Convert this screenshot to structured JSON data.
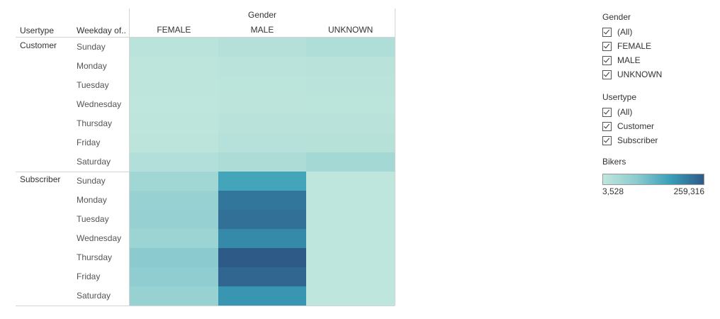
{
  "chart_data": {
    "type": "heatmap",
    "column_header": "Gender",
    "row_headers": [
      "Usertype",
      "Weekday of.."
    ],
    "columns": [
      "FEMALE",
      "MALE",
      "UNKNOWN"
    ],
    "groups": [
      {
        "name": "Customer",
        "rows": [
          {
            "day": "Sunday",
            "values": [
              12000,
              22000,
              30000
            ]
          },
          {
            "day": "Monday",
            "values": [
              6000,
              12000,
              14000
            ]
          },
          {
            "day": "Tuesday",
            "values": [
              5500,
              11000,
              13000
            ]
          },
          {
            "day": "Wednesday",
            "values": [
              4000,
              9000,
              11000
            ]
          },
          {
            "day": "Thursday",
            "values": [
              7500,
              15000,
              16000
            ]
          },
          {
            "day": "Friday",
            "values": [
              9000,
              18000,
              20000
            ]
          },
          {
            "day": "Saturday",
            "values": [
              26000,
              34000,
              48000
            ]
          }
        ]
      },
      {
        "name": "Subscriber",
        "rows": [
          {
            "day": "Sunday",
            "values": [
              55000,
              165000,
              5000
            ]
          },
          {
            "day": "Monday",
            "values": [
              70000,
              225000,
              3600
            ]
          },
          {
            "day": "Tuesday",
            "values": [
              72000,
              232000,
              3528
            ]
          },
          {
            "day": "Wednesday",
            "values": [
              62000,
              200000,
              3600
            ]
          },
          {
            "day": "Thursday",
            "values": [
              90000,
              259316,
              3700
            ]
          },
          {
            "day": "Friday",
            "values": [
              82000,
              245000,
              3800
            ]
          },
          {
            "day": "Saturday",
            "values": [
              70000,
              185000,
              4500
            ]
          }
        ]
      }
    ],
    "color_scale": {
      "min": 3528,
      "max": 259316,
      "colors": [
        "#bfe6dc",
        "#8ccbcf",
        "#3a9fb8",
        "#2e5a87"
      ]
    }
  },
  "filters": [
    {
      "title": "Gender",
      "items": [
        "(All)",
        "FEMALE",
        "MALE",
        "UNKNOWN"
      ]
    },
    {
      "title": "Usertype",
      "items": [
        "(All)",
        "Customer",
        "Subscriber"
      ]
    }
  ],
  "color_legend": {
    "title": "Bikers",
    "min_label": "3,528",
    "max_label": "259,316"
  }
}
